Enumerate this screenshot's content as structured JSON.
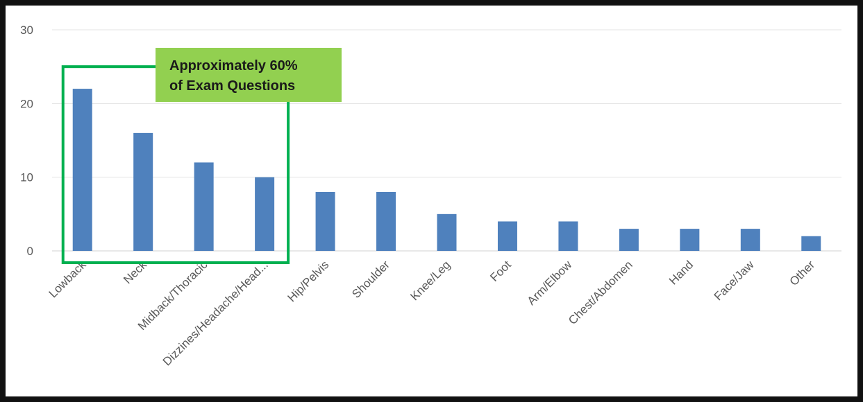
{
  "chart_data": {
    "type": "bar",
    "categories": [
      "Lowback",
      "Neck",
      "Midback/Thoracic",
      "Dizzines/Headache/Head...",
      "Hip/Pelvis",
      "Shoulder",
      "Knee/Leg",
      "Foot",
      "Arm/Elbow",
      "Chest/Abdomen",
      "Hand",
      "Face/Jaw",
      "Other"
    ],
    "values": [
      22,
      16,
      12,
      10,
      8,
      8,
      5,
      4,
      4,
      3,
      3,
      3,
      2
    ],
    "ylim": [
      0,
      30
    ],
    "yticks": [
      "0",
      "10",
      "20",
      "30"
    ],
    "grid": true,
    "bar_color": "#4f81bd",
    "title": "",
    "xlabel": "",
    "ylabel": "",
    "annotation": {
      "lines": [
        "Approximately 60%",
        "of Exam Questions"
      ],
      "fill_color": "#92d050",
      "highlight_border_color": "#00b050",
      "highlight_categories": [
        "Lowback",
        "Neck",
        "Midback/Thoracic",
        "Dizzines/Headache/Head..."
      ]
    }
  }
}
